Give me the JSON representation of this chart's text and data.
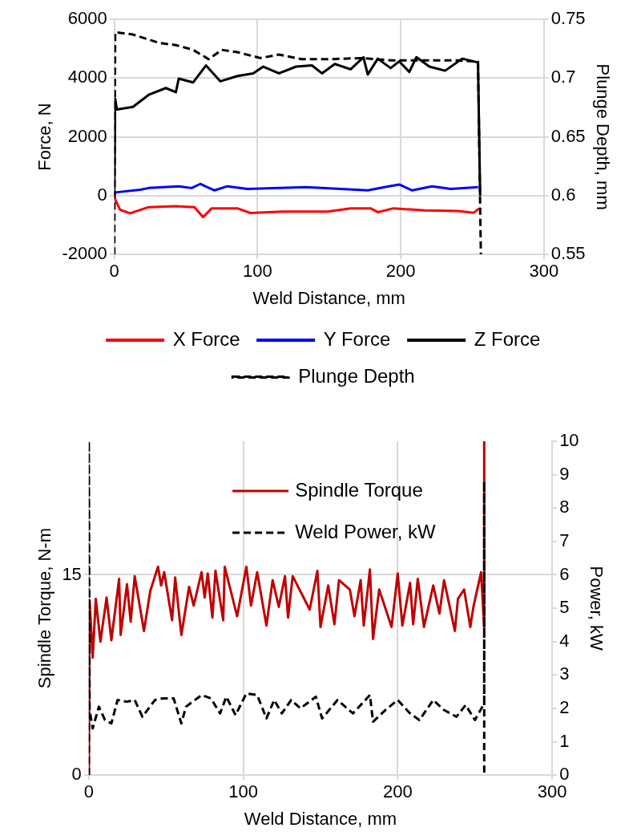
{
  "chart_data": [
    {
      "type": "line",
      "xlabel": "Weld Distance, mm",
      "ylabel": "Force, N",
      "y2label": "Plunge Depth, mm",
      "xlim": [
        0,
        300
      ],
      "xticks": [
        0,
        100,
        200,
        300
      ],
      "ylim": [
        -2000,
        6000
      ],
      "yticks": [
        -2000,
        0,
        2000,
        4000,
        6000
      ],
      "y2lim": [
        0.55,
        0.75
      ],
      "y2ticks": [
        0.55,
        0.6,
        0.65,
        0.7,
        0.75
      ],
      "grid": true,
      "legend": "bottom",
      "marker": "none",
      "series": [
        {
          "name": "X Force",
          "color": "#ff0000",
          "line_style": "solid",
          "x": [
            0,
            0.6,
            4,
            11,
            24,
            43,
            56,
            62,
            68,
            86,
            95,
            117,
            149,
            165,
            179,
            184,
            195,
            217,
            240,
            251,
            255
          ],
          "values": [
            0,
            -120,
            -480,
            -600,
            -390,
            -360,
            -390,
            -730,
            -430,
            -430,
            -590,
            -540,
            -540,
            -430,
            -430,
            -560,
            -430,
            -500,
            -520,
            -580,
            -430
          ]
        },
        {
          "name": "Y Force",
          "color": "#0000ff",
          "line_style": "solid",
          "x": [
            0,
            0.6,
            18,
            24,
            45,
            54,
            60,
            70,
            79,
            93,
            134,
            177,
            191,
            199,
            208,
            222,
            235,
            254
          ],
          "values": [
            0,
            110,
            200,
            260,
            320,
            260,
            400,
            180,
            320,
            230,
            290,
            180,
            310,
            380,
            180,
            320,
            230,
            290
          ]
        },
        {
          "name": "Z Force",
          "color": "#000000",
          "line_style": "solid",
          "x": [
            0,
            0.6,
            1.8,
            13,
            24,
            36,
            43,
            45,
            55,
            64,
            74,
            86,
            97,
            104,
            115,
            127,
            138,
            145,
            154,
            165,
            174,
            177,
            184,
            193,
            199,
            206,
            211,
            220,
            231,
            243,
            254,
            255.5
          ],
          "values": [
            0,
            3300,
            2930,
            3020,
            3430,
            3660,
            3520,
            3980,
            3850,
            4430,
            3890,
            4070,
            4160,
            4390,
            4160,
            4390,
            4430,
            4160,
            4480,
            4300,
            4710,
            4120,
            4660,
            4340,
            4570,
            4210,
            4710,
            4390,
            4250,
            4660,
            4530,
            0
          ]
        },
        {
          "name": "Plunge Depth",
          "color": "#000000",
          "line_style": "dashed",
          "axis": "y2",
          "x": [
            0,
            0.6,
            13,
            31,
            43,
            55,
            66,
            75,
            86,
            102,
            115,
            131,
            149,
            172,
            194,
            217,
            240,
            254,
            256
          ],
          "values": [
            0.55,
            0.739,
            0.737,
            0.73,
            0.728,
            0.724,
            0.716,
            0.724,
            0.722,
            0.717,
            0.72,
            0.716,
            0.716,
            0.717,
            0.715,
            0.715,
            0.715,
            0.714,
            0.55
          ]
        }
      ]
    },
    {
      "type": "line",
      "xlabel": "Weld Distance, mm",
      "ylabel": "Spindle Torque, N-m",
      "y2label": "Power, kW",
      "xlim": [
        0,
        300
      ],
      "xticks": [
        0,
        100,
        200,
        300
      ],
      "ylim": [
        0,
        25
      ],
      "yticks": [
        0,
        15
      ],
      "y2lim": [
        0,
        10
      ],
      "y2ticks": [
        0,
        1,
        2,
        3,
        4,
        5,
        6,
        7,
        8,
        9,
        10
      ],
      "grid": true,
      "legend": "top",
      "marker": "none",
      "series": [
        {
          "name": "Spindle Torque",
          "color": "#c00000",
          "line_style": "solid",
          "x": [
            0,
            0.5,
            2.5,
            4.5,
            7.5,
            11.5,
            14.6,
            19.6,
            20.6,
            24.7,
            27.1,
            29.7,
            35.7,
            39.8,
            44.8,
            46.8,
            48.8,
            53.9,
            55.9,
            59.9,
            64.9,
            67.9,
            73,
            75,
            77,
            80,
            82,
            87,
            88,
            96,
            102,
            105,
            109,
            115,
            119,
            123,
            127,
            129,
            132,
            143,
            148,
            150,
            155,
            159,
            162,
            169,
            172,
            176,
            178,
            182,
            184,
            188,
            196,
            200,
            203,
            208,
            210,
            213,
            217,
            223,
            227,
            230,
            237,
            239,
            243,
            247,
            249,
            254,
            256,
            256
          ],
          "values": [
            0,
            13.1,
            8.8,
            13.2,
            10.0,
            13.3,
            10.1,
            14.7,
            10.5,
            14.3,
            11.5,
            14.9,
            10.8,
            13.8,
            15.6,
            14.2,
            15.2,
            11.6,
            14.8,
            10.5,
            14.1,
            12.7,
            15.2,
            13.3,
            15.1,
            11.8,
            15.3,
            11.6,
            15.6,
            11.9,
            15.6,
            12.7,
            15.2,
            11.2,
            14.6,
            12.6,
            14.9,
            11.8,
            14.9,
            12.4,
            15.3,
            11.1,
            14.2,
            11.3,
            14.6,
            13.9,
            11.9,
            14.6,
            11.2,
            15.4,
            10.2,
            13.9,
            11.1,
            15.1,
            11.2,
            14.4,
            11.3,
            14.7,
            11.1,
            14.2,
            12.1,
            14.6,
            10.8,
            13.2,
            13.9,
            11.1,
            12.6,
            15.2,
            11.0,
            25
          ]
        },
        {
          "name": "Weld Power, kW",
          "color": "#000000",
          "line_style": "dashed",
          "axis": "y2",
          "x": [
            0,
            0,
            0.5,
            2.5,
            6.5,
            10.5,
            14.6,
            18.6,
            24.7,
            29.7,
            34.7,
            42.8,
            47.8,
            54.9,
            59.9,
            62.9,
            73,
            79,
            85,
            89,
            95,
            102,
            109,
            115,
            120,
            125,
            131,
            137,
            147,
            151,
            161,
            171,
            182,
            184,
            192,
            200,
            208,
            214,
            223,
            230,
            238,
            244,
            250,
            256,
            256,
            256
          ],
          "values": [
            0,
            10,
            1.95,
            1.4,
            2.05,
            1.65,
            1.55,
            2.25,
            2.2,
            2.25,
            1.75,
            2.25,
            2.3,
            2.3,
            1.55,
            2.05,
            2.4,
            2.3,
            1.85,
            2.35,
            1.8,
            2.45,
            2.4,
            1.7,
            2.25,
            1.85,
            2.25,
            2.0,
            2.35,
            1.7,
            2.25,
            1.85,
            2.4,
            1.6,
            1.95,
            2.25,
            1.85,
            1.65,
            2.25,
            1.95,
            1.75,
            2.1,
            1.65,
            2.15,
            8.8,
            0
          ]
        }
      ]
    }
  ]
}
